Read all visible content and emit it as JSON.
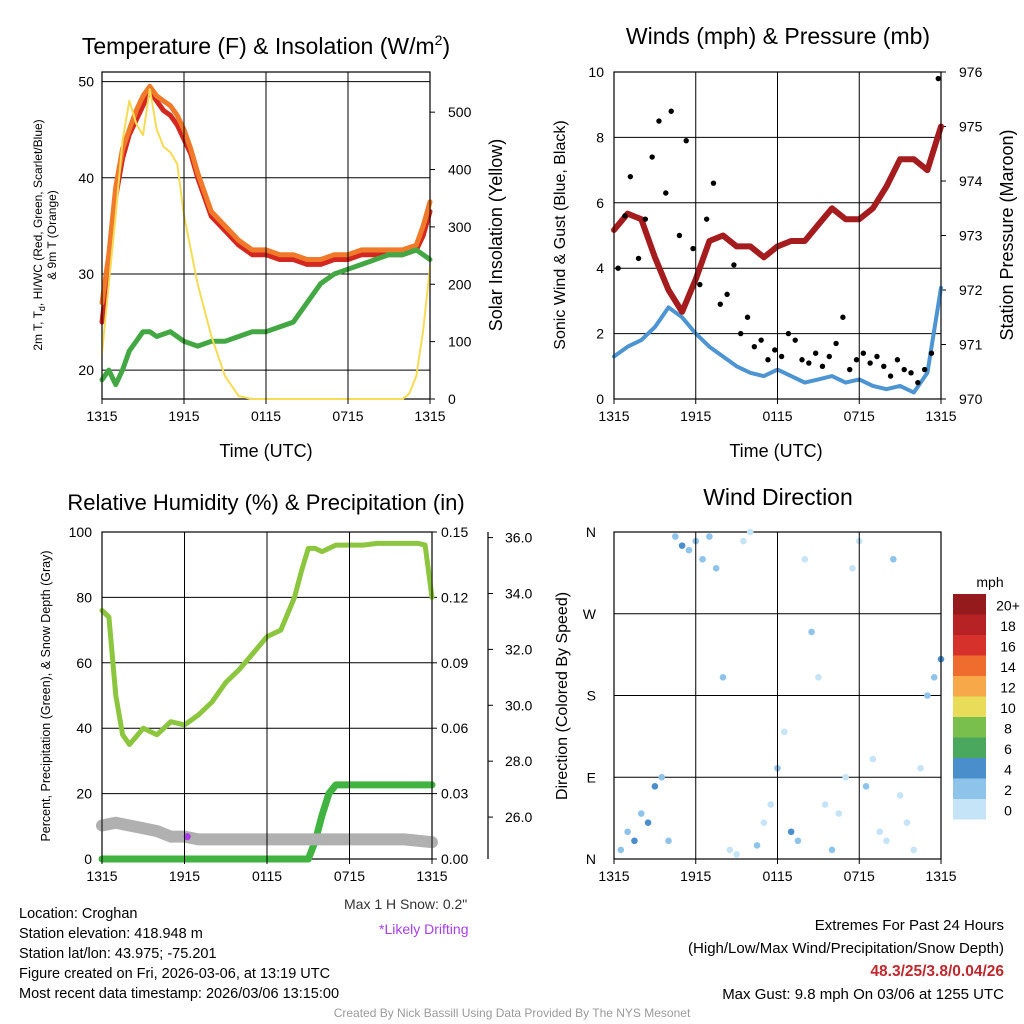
{
  "chart_data": [
    {
      "type": "line",
      "title": "Temperature (F) & Insolation (W/m2)",
      "title_main": "Temperature (F) & Insolation (W/m",
      "title_sup": "2",
      "title_end": ")",
      "xlabel": "Time (UTC)",
      "ylabel": "2m T, Td, HI/WC (Red, Green, Scarlet/Blue) & 9m T (Orange)",
      "ylabel_line1": "2m T, T",
      "ylabel_sub": "d",
      "ylabel_line1b": ", HI/WC (Red, Green, Scarlet/Blue)",
      "ylabel_line2": "& 9m T (Orange)",
      "y2label": "Solar Insolation (Yellow)",
      "x_ticks": [
        "1315",
        "1915",
        "0115",
        "0715",
        "1315"
      ],
      "y_ticks": [
        "20",
        "30",
        "40",
        "50"
      ],
      "y2_ticks": [
        "0",
        "100",
        "200",
        "300",
        "400",
        "500"
      ],
      "ylim": [
        17,
        51
      ],
      "y2lim": [
        0,
        570
      ],
      "series": [
        {
          "name": "2m T",
          "color": "#d4271f",
          "x": [
            0,
            0.5,
            1,
            1.5,
            2,
            2.5,
            3,
            3.5,
            4,
            4.5,
            5,
            5.5,
            6,
            6.5,
            7,
            7.5,
            8,
            9,
            10,
            11,
            12,
            13,
            14,
            15,
            16,
            17,
            18,
            19,
            20,
            21,
            22,
            23,
            23.5,
            24
          ],
          "values": [
            25,
            31,
            38,
            42,
            44.5,
            46,
            47.5,
            49,
            48,
            47,
            46.5,
            45.5,
            44,
            42.5,
            40,
            38,
            36,
            34.5,
            33,
            32,
            32,
            31.5,
            31.5,
            31,
            31,
            31.5,
            31.5,
            32,
            32,
            32,
            32,
            32.5,
            34,
            36.5
          ]
        },
        {
          "name": "9m T",
          "color": "#f07a2a",
          "x": [
            0,
            0.5,
            1,
            1.5,
            2,
            2.5,
            3,
            3.5,
            4,
            4.5,
            5,
            5.5,
            6,
            6.5,
            7,
            7.5,
            8,
            9,
            10,
            11,
            12,
            13,
            14,
            15,
            16,
            17,
            18,
            19,
            20,
            21,
            22,
            23,
            23.5,
            24
          ],
          "values": [
            27,
            32,
            39,
            43,
            45,
            47,
            48.5,
            49.5,
            48.5,
            48,
            47.5,
            46.5,
            45,
            43,
            40.5,
            38.5,
            36.5,
            35,
            33.5,
            32.5,
            32.5,
            32,
            32,
            31.5,
            31.5,
            32,
            32,
            32.5,
            32.5,
            32.5,
            32.5,
            33,
            35,
            37.5
          ]
        },
        {
          "name": "Td",
          "color": "#43a843",
          "x": [
            0,
            0.5,
            1,
            1.5,
            2,
            2.5,
            3,
            3.5,
            4,
            5,
            6,
            7,
            8,
            9,
            10,
            11,
            12,
            13,
            14,
            15,
            16,
            17,
            18,
            19,
            20,
            21,
            22,
            23,
            24
          ],
          "values": [
            19,
            20,
            18.5,
            20,
            22,
            23,
            24,
            24,
            23.5,
            24,
            23,
            22.5,
            23,
            23,
            23.5,
            24,
            24,
            24.5,
            25,
            27,
            29,
            30,
            30.5,
            31,
            31.5,
            32,
            32,
            32.5,
            31.5
          ]
        },
        {
          "name": "Solar Insolation",
          "color": "#f6dc55",
          "axis": "y2",
          "x": [
            0,
            0.5,
            1,
            1.5,
            2,
            2.5,
            3,
            3.5,
            4,
            4.5,
            5,
            5.5,
            6,
            7,
            8,
            9,
            10,
            11,
            12,
            13,
            14,
            15,
            16,
            17,
            18,
            19,
            20,
            21,
            22,
            22.5,
            23,
            23.5,
            24
          ],
          "values": [
            80,
            200,
            320,
            450,
            520,
            480,
            460,
            540,
            470,
            440,
            430,
            410,
            320,
            200,
            110,
            40,
            5,
            0,
            0,
            0,
            0,
            0,
            0,
            0,
            0,
            0,
            0,
            0,
            0,
            10,
            40,
            120,
            230
          ]
        }
      ]
    },
    {
      "type": "line",
      "title": "Winds (mph) & Pressure (mb)",
      "xlabel": "Time (UTC)",
      "ylabel": "Sonic Wind & Gust (Blue, Black)",
      "y2label": "Station Pressure (Maroon)",
      "x_ticks": [
        "1315",
        "1915",
        "0115",
        "0715",
        "1315"
      ],
      "y_ticks": [
        "0",
        "2",
        "4",
        "6",
        "8",
        "10"
      ],
      "y2_ticks": [
        "970",
        "971",
        "972",
        "973",
        "974",
        "975",
        "976"
      ],
      "ylim": [
        0,
        10
      ],
      "y2lim": [
        970,
        976
      ],
      "series": [
        {
          "name": "Sonic Wind",
          "color": "#4d94d2",
          "x": [
            0,
            1,
            2,
            3,
            4,
            5,
            6,
            7,
            8,
            9,
            10,
            11,
            12,
            13,
            14,
            15,
            16,
            17,
            18,
            19,
            20,
            21,
            22,
            23,
            24
          ],
          "values": [
            1.3,
            1.6,
            1.8,
            2.2,
            2.8,
            2.5,
            2.0,
            1.6,
            1.3,
            1.0,
            0.8,
            0.7,
            0.9,
            0.7,
            0.5,
            0.6,
            0.7,
            0.5,
            0.6,
            0.4,
            0.3,
            0.4,
            0.2,
            0.8,
            3.4
          ]
        },
        {
          "name": "Pressure",
          "color": "#a51c1e",
          "axis": "y2",
          "x": [
            0,
            1,
            2,
            3,
            4,
            5,
            6,
            7,
            8,
            9,
            10,
            11,
            12,
            13,
            14,
            15,
            16,
            17,
            18,
            19,
            20,
            21,
            22,
            23,
            24
          ],
          "values": [
            973.1,
            973.4,
            973.3,
            972.6,
            972.0,
            971.6,
            972.2,
            972.9,
            973.0,
            972.8,
            972.8,
            972.6,
            972.8,
            972.9,
            972.9,
            973.2,
            973.5,
            973.3,
            973.3,
            973.5,
            973.9,
            974.4,
            974.4,
            974.2,
            975.0
          ]
        }
      ],
      "gust": {
        "name": "Gust",
        "color": "#000000",
        "x": [
          0.3,
          0.8,
          1.2,
          1.8,
          2.3,
          2.8,
          3.3,
          3.8,
          4.2,
          4.8,
          5.3,
          5.8,
          6.3,
          6.8,
          7.3,
          7.8,
          8.3,
          8.8,
          9.3,
          9.8,
          10.3,
          10.8,
          11.3,
          11.8,
          12.3,
          12.8,
          13.3,
          13.8,
          14.3,
          14.8,
          15.3,
          15.8,
          16.3,
          16.8,
          17.3,
          17.8,
          18.3,
          18.8,
          19.3,
          19.8,
          20.3,
          20.8,
          21.3,
          21.8,
          22.3,
          22.8,
          23.3,
          23.8
        ],
        "values": [
          4.0,
          5.6,
          6.8,
          4.3,
          5.5,
          7.4,
          8.5,
          6.3,
          8.8,
          5.0,
          7.9,
          4.6,
          3.5,
          5.5,
          6.6,
          2.9,
          3.2,
          4.1,
          2.0,
          2.5,
          1.6,
          1.8,
          1.2,
          1.5,
          1.3,
          2.0,
          1.8,
          1.2,
          1.1,
          1.4,
          1.0,
          1.3,
          1.7,
          2.5,
          0.9,
          1.2,
          1.4,
          1.1,
          1.3,
          1.0,
          0.7,
          1.2,
          0.9,
          0.8,
          0.5,
          0.9,
          1.4,
          9.8
        ]
      }
    },
    {
      "type": "line",
      "title": "Relative Humidity (%) & Precipitation (in)",
      "xlabel": "",
      "ylabel": "Percent, Precipitation (Green), & Snow Depth (Gray)",
      "x_ticks": [
        "1315",
        "1915",
        "0115",
        "0715",
        "1315"
      ],
      "y_ticks": [
        "0",
        "20",
        "40",
        "60",
        "80",
        "100"
      ],
      "y2_ticks": [
        "0.00",
        "0.03",
        "0.06",
        "0.09",
        "0.12",
        "0.15"
      ],
      "y3_ticks": [
        "26.0",
        "28.0",
        "30.0",
        "32.0",
        "34.0",
        "36.0"
      ],
      "ylim": [
        0,
        100
      ],
      "y2lim": [
        0,
        0.15
      ],
      "y3lim": [
        24.5,
        36.2
      ],
      "series": [
        {
          "name": "Relative Humidity",
          "color": "#8cc63e",
          "x": [
            0,
            0.5,
            1,
            1.5,
            2,
            3,
            4,
            5,
            6,
            7,
            8,
            9,
            10,
            11,
            12,
            13,
            14,
            14.5,
            15,
            15.5,
            16,
            17,
            18,
            19,
            20,
            21,
            22,
            23,
            23.5,
            24
          ],
          "values": [
            76,
            74,
            50,
            38,
            35,
            40,
            38,
            42,
            41,
            44,
            48,
            54,
            58,
            63,
            68,
            70,
            80,
            88,
            95,
            95,
            94,
            96,
            96,
            96,
            96.5,
            96.5,
            96.5,
            96.5,
            96,
            80
          ]
        },
        {
          "name": "Precipitation",
          "color": "#41b341",
          "axis": "y2",
          "x": [
            0,
            15,
            15.5,
            16,
            16.5,
            17,
            18,
            20,
            22,
            24
          ],
          "values": [
            0,
            0,
            0.008,
            0.02,
            0.03,
            0.034,
            0.034,
            0.034,
            0.034,
            0.034
          ]
        },
        {
          "name": "Snow Depth",
          "color": "#b0b0b0",
          "axis": "y3",
          "x": [
            0,
            1,
            2,
            3,
            4,
            5,
            6,
            7,
            8,
            10,
            12,
            14,
            16,
            18,
            20,
            22,
            24
          ],
          "values": [
            25.7,
            25.8,
            25.7,
            25.6,
            25.5,
            25.3,
            25.3,
            25.2,
            25.2,
            25.2,
            25.2,
            25.2,
            25.2,
            25.2,
            25.2,
            25.2,
            25.1
          ]
        }
      ],
      "annotations": {
        "snow_max": "Max 1 H Snow: 0.2\"",
        "drifting": "*Likely Drifting"
      }
    },
    {
      "type": "scatter",
      "title": "Wind Direction",
      "ylabel": "Direction (Colored By Speed)",
      "x_ticks": [
        "1315",
        "1915",
        "0115",
        "0715",
        "1315"
      ],
      "y_ticks": [
        "N",
        "E",
        "S",
        "W",
        "N"
      ],
      "ylim": [
        0,
        360
      ],
      "legend_title": "mph",
      "legend_labels": [
        "0",
        "2",
        "4",
        "6",
        "8",
        "10",
        "12",
        "14",
        "16",
        "18",
        "20+"
      ],
      "legend_colors": [
        "#c5e4f7",
        "#8ec4ea",
        "#4a8fcb",
        "#4aa85e",
        "#79bf4d",
        "#e8dc58",
        "#f7a94a",
        "#ee6d2e",
        "#d6322b",
        "#b72225",
        "#951a1c"
      ],
      "x": [
        0.5,
        1,
        1.5,
        2,
        2.5,
        3,
        3.5,
        4,
        4.5,
        5,
        5.5,
        6,
        6.5,
        7,
        7.5,
        8,
        8.5,
        9,
        9.5,
        10,
        10.5,
        11,
        11.5,
        12,
        12.5,
        13,
        13.5,
        14,
        14.5,
        15,
        15.5,
        16,
        16.5,
        17,
        17.5,
        18,
        18.5,
        19,
        19.5,
        20,
        20.5,
        21,
        21.5,
        22,
        22.5,
        23,
        23.5,
        24
      ],
      "values": [
        10,
        30,
        20,
        50,
        40,
        80,
        90,
        20,
        355,
        345,
        340,
        350,
        330,
        355,
        320,
        200,
        10,
        5,
        350,
        360,
        15,
        40,
        60,
        100,
        140,
        30,
        20,
        330,
        250,
        200,
        60,
        10,
        50,
        90,
        320,
        350,
        80,
        110,
        30,
        20,
        330,
        70,
        40,
        10,
        100,
        180,
        200,
        220
      ],
      "speeds": [
        3,
        3,
        4,
        3,
        4,
        4,
        3,
        3,
        3,
        4,
        3,
        2,
        3,
        2,
        2,
        2,
        1,
        1,
        1,
        1,
        2,
        1,
        1,
        2,
        1,
        4,
        3,
        1,
        2,
        1,
        1,
        2,
        1,
        1,
        1,
        1,
        2,
        1,
        1,
        1,
        2,
        1,
        1,
        1,
        1,
        3,
        3,
        4
      ]
    }
  ],
  "footer": {
    "location": "Location: Croghan",
    "elevation": "Station elevation: 418.948 m",
    "latlon": "Station lat/lon: 43.975; -75.201",
    "created": "Figure created on Fri, 2026-03-06, at 13:19 UTC",
    "recent": "Most recent data timestamp: 2026/03/06 13:15:00",
    "extremes_title": "Extremes For Past 24 Hours",
    "extremes_sub": "(High/Low/Max Wind/Precipitation/Snow Depth)",
    "extremes_values": "48.3/25/3.8/0.04/26",
    "max_gust": "Max Gust: 9.8 mph On 03/06 at 1255 UTC",
    "credit": "Created By Nick Bassill Using Data Provided By The NYS Mesonet"
  }
}
